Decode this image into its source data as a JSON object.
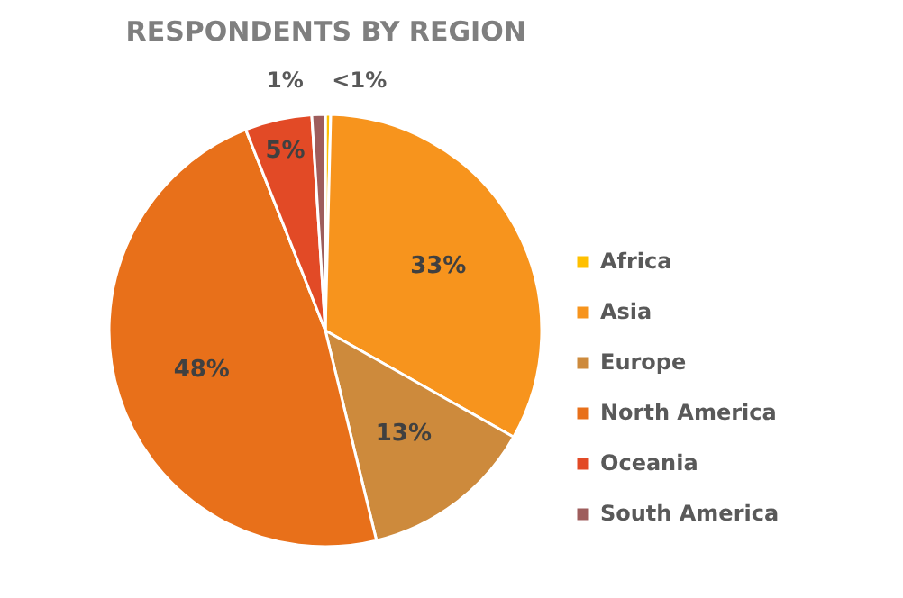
{
  "chart_data": {
    "type": "pie",
    "title": "RESPONDENTS BY REGION",
    "categories": [
      "Africa",
      "Asia",
      "Europe",
      "North America",
      "Oceania",
      "South America"
    ],
    "values": [
      0.4,
      32.8,
      13,
      47.8,
      5,
      1
    ],
    "value_labels": [
      "<1%",
      "33%",
      "13%",
      "48%",
      "5%",
      "1%"
    ],
    "colors": [
      "#ffc000",
      "#f7941d",
      "#cd8a3c",
      "#e8701a",
      "#e24a26",
      "#9e5d5c"
    ],
    "legend": "right"
  }
}
